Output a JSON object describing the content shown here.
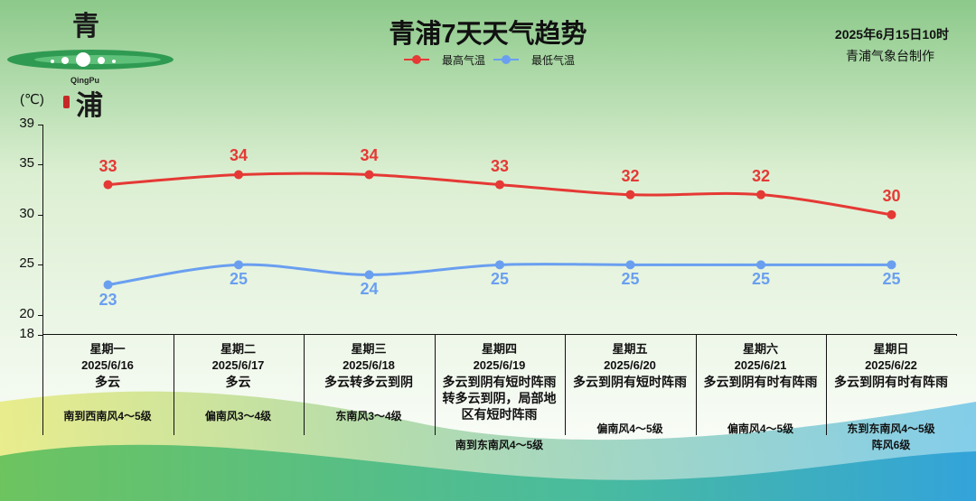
{
  "header": {
    "title": "青浦7天天气趋势",
    "logo_top": "青",
    "logo_bottom": "浦",
    "logo_small": "QingPu",
    "date": "2025年6月15日10时",
    "credit": "青浦气象台制作"
  },
  "colors": {
    "high": "#e53935",
    "low": "#6a9ff0"
  },
  "chart_data": {
    "type": "line",
    "ylabel": "(℃)",
    "ylim": [
      18,
      39
    ],
    "yticks": [
      18,
      20,
      25,
      30,
      35,
      39
    ],
    "categories": [
      "星期一",
      "星期二",
      "星期三",
      "星期四",
      "星期五",
      "星期六",
      "星期日"
    ],
    "series": [
      {
        "name": "最高气温",
        "values": [
          33,
          34,
          34,
          33,
          32,
          32,
          30
        ]
      },
      {
        "name": "最低气温",
        "values": [
          23,
          25,
          24,
          25,
          25,
          25,
          25
        ]
      }
    ]
  },
  "days": [
    {
      "weekday": "星期一",
      "date": "2025/6/16",
      "weather": "多云",
      "wind": "南到西南风4～5级"
    },
    {
      "weekday": "星期二",
      "date": "2025/6/17",
      "weather": "多云",
      "wind": "偏南风3～4级"
    },
    {
      "weekday": "星期三",
      "date": "2025/6/18",
      "weather": "多云转多云到阴",
      "wind": "东南风3～4级"
    },
    {
      "weekday": "星期四",
      "date": "2025/6/19",
      "weather": "多云到阴有短时阵雨转多云到阴，局部地区有短时阵雨",
      "wind": "南到东南风4～5级"
    },
    {
      "weekday": "星期五",
      "date": "2025/6/20",
      "weather": "多云到阴有短时阵雨",
      "wind": "偏南风4～5级"
    },
    {
      "weekday": "星期六",
      "date": "2025/6/21",
      "weather": "多云到阴有时有阵雨",
      "wind": "偏南风4～5级"
    },
    {
      "weekday": "星期日",
      "date": "2025/6/22",
      "weather": "多云到阴有时有阵雨",
      "wind": "东到东南风4～5级阵风6级"
    }
  ]
}
